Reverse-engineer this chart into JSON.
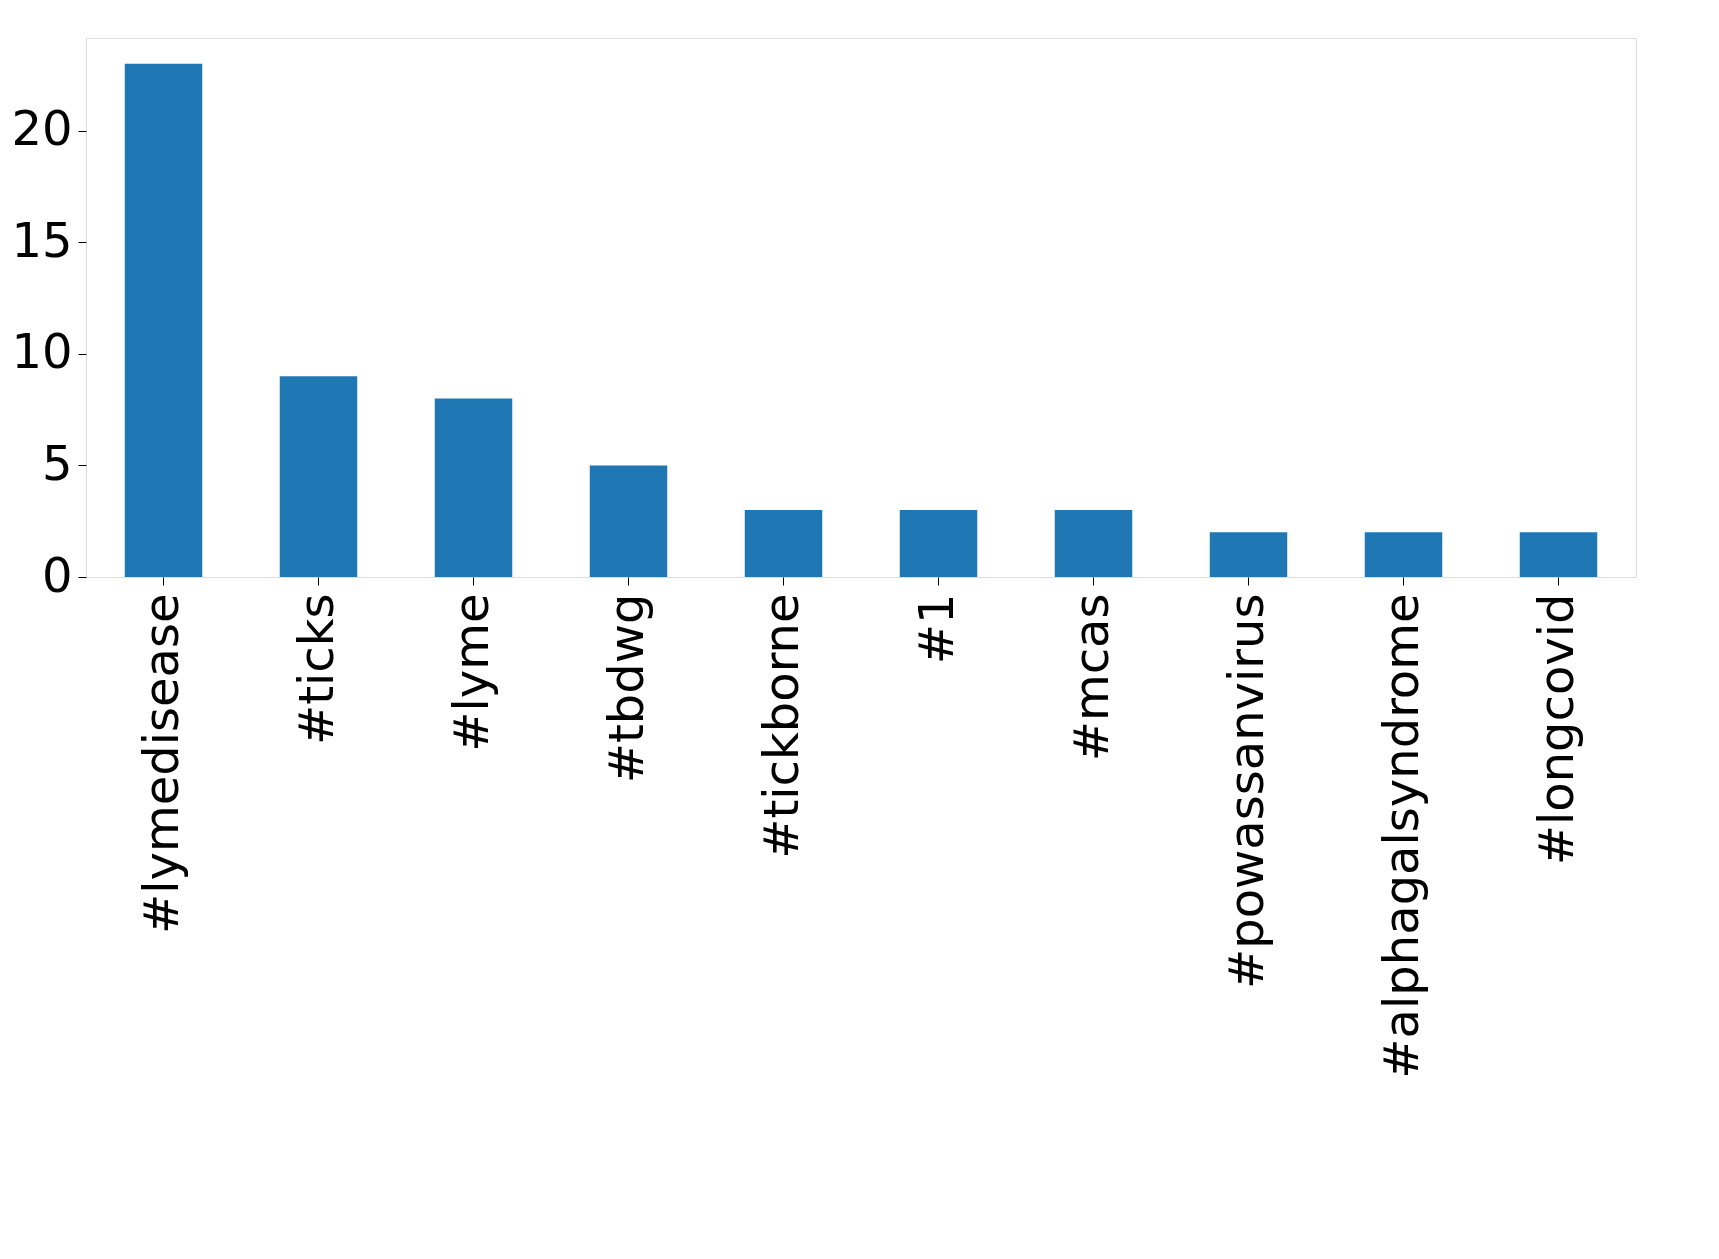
{
  "chart_data": {
    "type": "bar",
    "categories": [
      "#lymedisease",
      "#ticks",
      "#lyme",
      "#tbdwg",
      "#tickborne",
      "#1",
      "#mcas",
      "#powassanvirus",
      "#alphagalsyndrome",
      "#longcovid"
    ],
    "values": [
      23,
      9,
      8,
      5,
      3,
      3,
      3,
      2,
      2,
      2
    ],
    "color": "#1f77b4",
    "ylim": [
      0,
      24.15
    ],
    "yticks": [
      0,
      5,
      10,
      15,
      20
    ],
    "grid": false
  }
}
